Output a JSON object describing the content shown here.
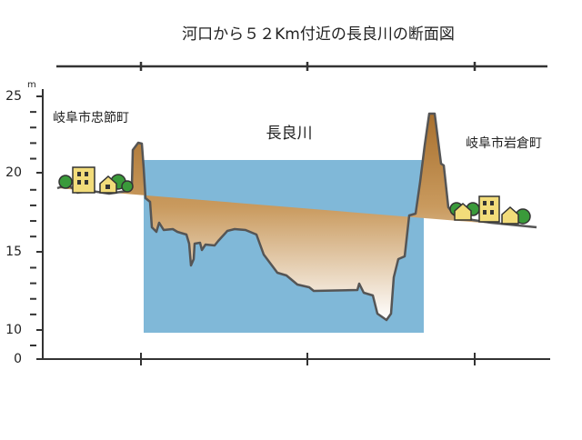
{
  "title": "河口から５２Km付近の長良川の断面図",
  "axis": {
    "unit": "m",
    "ticks": [
      "25",
      "20",
      "15",
      "10",
      "0"
    ]
  },
  "labels": {
    "left_bank": "岐阜市忠節町",
    "river": "長良川",
    "right_bank": "岐阜市岩倉町"
  }
}
